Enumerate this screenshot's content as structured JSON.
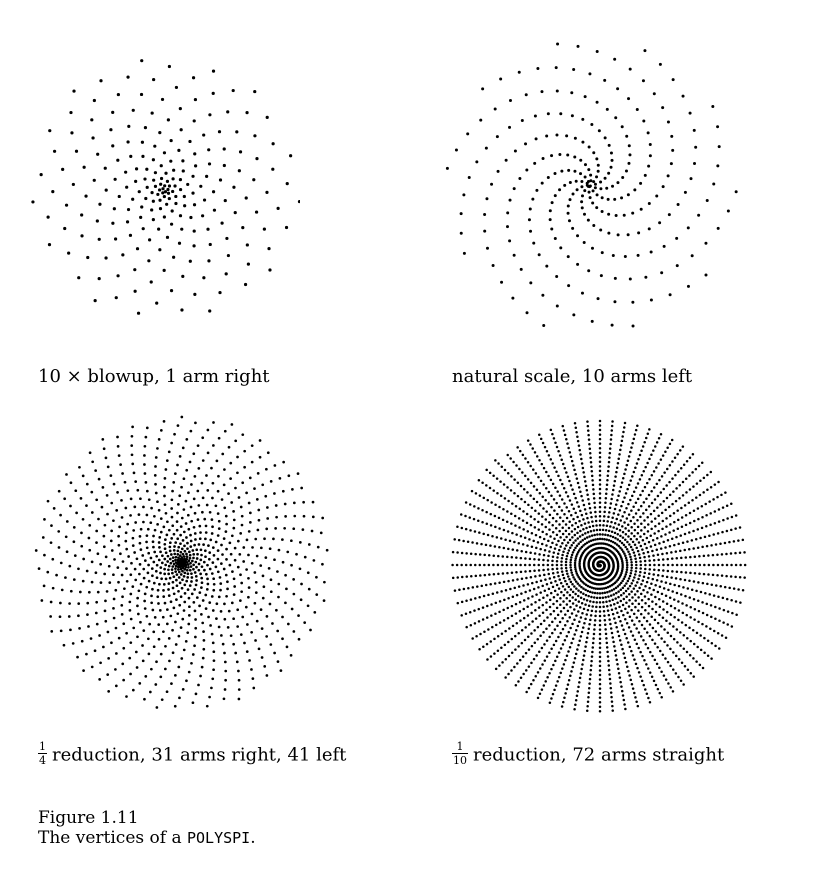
{
  "panels": [
    {
      "caption": "10 × blowup, 1 arm right",
      "arms_description": "1 arm right"
    },
    {
      "caption": "natural scale, 10 arms left",
      "arms_description": "10 arms left"
    },
    {
      "caption_fraction_numerator": "1",
      "caption_fraction_denominator": "4",
      "caption_rest": "reduction, 31 arms right, 41 left"
    },
    {
      "caption_fraction_numerator": "1",
      "caption_fraction_denominator": "10",
      "caption_rest": "reduction, 72 arms straight"
    }
  ],
  "figure": {
    "label": "Figure 1.11",
    "description_prefix": "The vertices of a",
    "description_code": "POLYSPI",
    "description_suffix": "."
  },
  "colors": {
    "dot": "#000000",
    "background": "#ffffff"
  }
}
